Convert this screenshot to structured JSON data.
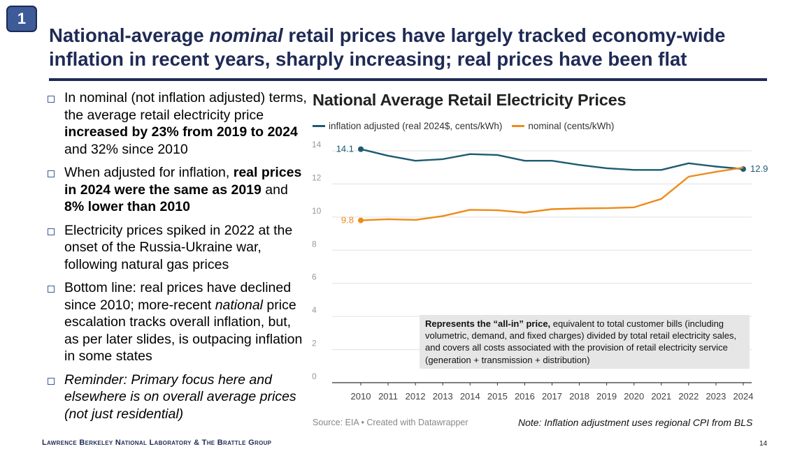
{
  "slide": {
    "number": "1",
    "title_parts": [
      {
        "text": "National-average ",
        "italic": false
      },
      {
        "text": "nominal",
        "italic": true
      },
      {
        "text": " retail prices have largely tracked economy-wide inflation in recent years, sharply increasing; real prices have been flat",
        "italic": false
      }
    ],
    "bullets": [
      {
        "italic": false,
        "parts": [
          {
            "text": "In nominal (not inflation adjusted) terms, the average retail electricity price ",
            "b": false,
            "i": false
          },
          {
            "text": "increased by 23% from 2019 to 2024",
            "b": true,
            "i": false
          },
          {
            "text": " and 32% since 2010",
            "b": false,
            "i": false
          }
        ]
      },
      {
        "italic": false,
        "parts": [
          {
            "text": "When adjusted for inflation, ",
            "b": false,
            "i": false
          },
          {
            "text": "real prices in 2024 were the same as 2019",
            "b": true,
            "i": false
          },
          {
            "text": " and ",
            "b": false,
            "i": false
          },
          {
            "text": "8% lower than 2010",
            "b": true,
            "i": false
          }
        ]
      },
      {
        "italic": false,
        "parts": [
          {
            "text": "Electricity prices spiked in 2022 at the onset of the Russia-Ukraine war, following natural gas prices",
            "b": false,
            "i": false
          }
        ]
      },
      {
        "italic": false,
        "parts": [
          {
            "text": "Bottom line: real prices have declined since 2010; more-recent ",
            "b": false,
            "i": false
          },
          {
            "text": "national",
            "b": false,
            "i": true
          },
          {
            "text": " price escalation tracks overall inflation, but, as per later slides, is outpacing inflation in some states",
            "b": false,
            "i": false
          }
        ]
      },
      {
        "italic": true,
        "parts": [
          {
            "text": "Reminder: Primary focus here and elsewhere is on overall average prices (not just residential)",
            "b": false,
            "i": false
          }
        ]
      }
    ],
    "annotation_bold": "Represents the “all-in” price,",
    "annotation_text": " equivalent to total customer bills (including volumetric, demand, and fixed charges) divided by total retail electricity sales, and covers all costs associated with the provision of retail electricity service (generation + transmission + distribution)",
    "source": "Source: EIA • Created with Datawrapper",
    "note": "Note: Inflation adjustment uses regional CPI from BLS",
    "footer": "Lawrence Berkeley National Laboratory & The Brattle Group",
    "page_number": "14"
  },
  "chart_data": {
    "type": "line",
    "title": "National Average Retail Electricity Prices",
    "x": [
      2010,
      2011,
      2012,
      2013,
      2014,
      2015,
      2016,
      2017,
      2018,
      2019,
      2020,
      2021,
      2022,
      2023,
      2024
    ],
    "ylim": [
      0,
      14
    ],
    "yticks": [
      0,
      2,
      4,
      6,
      8,
      10,
      12,
      14
    ],
    "series": [
      {
        "name": "inflation adjusted (real 2024$, cents/kWh)",
        "color": "#1d5a72",
        "values": [
          14.1,
          13.7,
          13.4,
          13.5,
          13.8,
          13.75,
          13.4,
          13.4,
          13.15,
          12.95,
          12.85,
          12.85,
          13.25,
          13.05,
          12.9
        ],
        "start_label": "14.1",
        "end_label": "12.9"
      },
      {
        "name": "nominal (cents/kWh)",
        "color": "#ee8b19",
        "values": [
          9.8,
          9.87,
          9.83,
          10.06,
          10.44,
          10.41,
          10.27,
          10.48,
          10.52,
          10.54,
          10.59,
          11.1,
          12.44,
          12.73,
          12.99
        ],
        "start_label": "9.8"
      }
    ],
    "grid": true,
    "legend": "top-left"
  }
}
